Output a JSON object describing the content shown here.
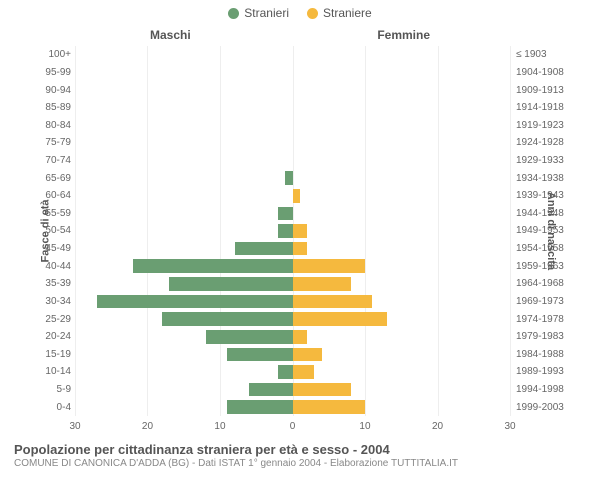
{
  "legend": {
    "male": "Stranieri",
    "female": "Straniere",
    "male_color": "#6a9e72",
    "female_color": "#f5b93e"
  },
  "columns": {
    "left": "Maschi",
    "right": "Femmine"
  },
  "axis_titles": {
    "left": "Fasce di età",
    "right": "Anni di nascita"
  },
  "footer": {
    "title": "Popolazione per cittadinanza straniera per età e sesso - 2004",
    "subtitle": "COMUNE DI CANONICA D'ADDA (BG) - Dati ISTAT 1° gennaio 2004 - Elaborazione TUTTITALIA.IT"
  },
  "chart": {
    "x_max": 30,
    "x_ticks_left": [
      30,
      20,
      10,
      0
    ],
    "x_ticks_right": [
      0,
      10,
      20,
      30
    ],
    "rows": [
      {
        "age": "100+",
        "birth": "≤ 1903",
        "m": 0,
        "f": 0
      },
      {
        "age": "95-99",
        "birth": "1904-1908",
        "m": 0,
        "f": 0
      },
      {
        "age": "90-94",
        "birth": "1909-1913",
        "m": 0,
        "f": 0
      },
      {
        "age": "85-89",
        "birth": "1914-1918",
        "m": 0,
        "f": 0
      },
      {
        "age": "80-84",
        "birth": "1919-1923",
        "m": 0,
        "f": 0
      },
      {
        "age": "75-79",
        "birth": "1924-1928",
        "m": 0,
        "f": 0
      },
      {
        "age": "70-74",
        "birth": "1929-1933",
        "m": 0,
        "f": 0
      },
      {
        "age": "65-69",
        "birth": "1934-1938",
        "m": 1,
        "f": 0
      },
      {
        "age": "60-64",
        "birth": "1939-1943",
        "m": 0,
        "f": 1
      },
      {
        "age": "55-59",
        "birth": "1944-1948",
        "m": 2,
        "f": 0
      },
      {
        "age": "50-54",
        "birth": "1949-1953",
        "m": 2,
        "f": 2
      },
      {
        "age": "45-49",
        "birth": "1954-1958",
        "m": 8,
        "f": 2
      },
      {
        "age": "40-44",
        "birth": "1959-1963",
        "m": 22,
        "f": 10
      },
      {
        "age": "35-39",
        "birth": "1964-1968",
        "m": 17,
        "f": 8
      },
      {
        "age": "30-34",
        "birth": "1969-1973",
        "m": 27,
        "f": 11
      },
      {
        "age": "25-29",
        "birth": "1974-1978",
        "m": 18,
        "f": 13
      },
      {
        "age": "20-24",
        "birth": "1979-1983",
        "m": 12,
        "f": 2
      },
      {
        "age": "15-19",
        "birth": "1984-1988",
        "m": 9,
        "f": 4
      },
      {
        "age": "10-14",
        "birth": "1989-1993",
        "m": 2,
        "f": 3
      },
      {
        "age": "5-9",
        "birth": "1994-1998",
        "m": 6,
        "f": 8
      },
      {
        "age": "0-4",
        "birth": "1999-2003",
        "m": 9,
        "f": 10
      }
    ]
  },
  "colors": {
    "background": "#ffffff",
    "grid": "#eeeeee",
    "center_line": "#7a7a3a",
    "text": "#555555",
    "subtext": "#888888"
  }
}
